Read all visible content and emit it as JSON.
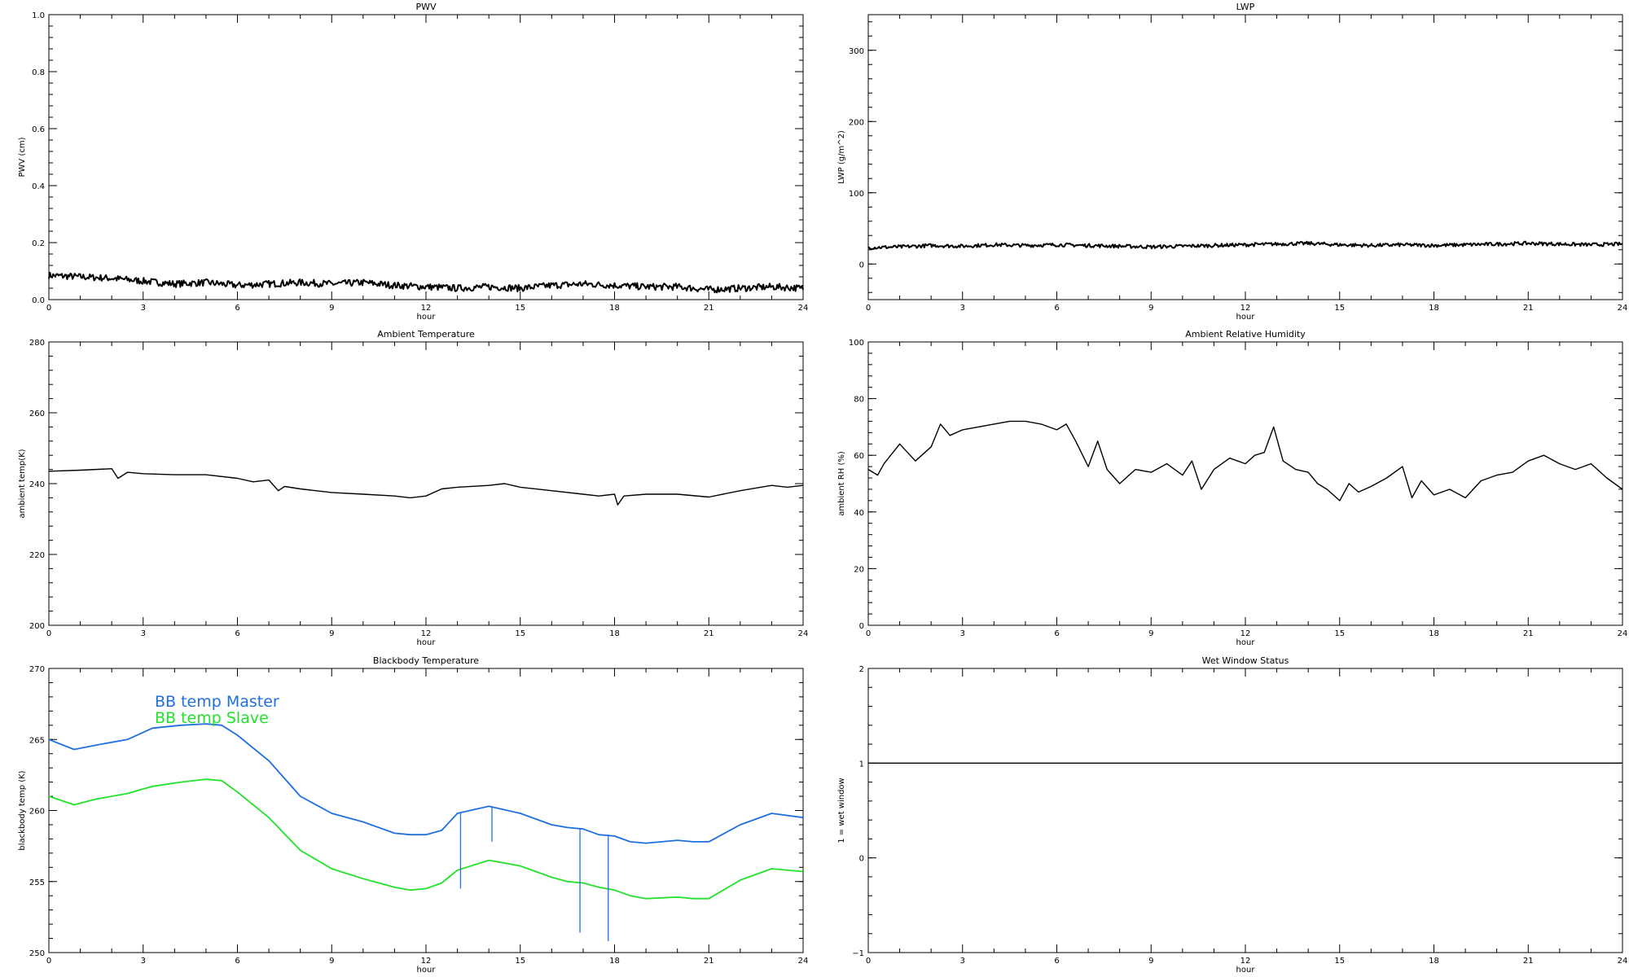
{
  "chart_data": [
    {
      "type": "line",
      "title": "PWV",
      "xlabel": "hour",
      "ylabel": "PWV (cm)",
      "xlim": [
        0,
        24
      ],
      "ylim": [
        0,
        1.0
      ],
      "xticks": [
        "0",
        "3",
        "6",
        "9",
        "12",
        "15",
        "18",
        "21",
        "24"
      ],
      "yticks": [
        "0.0",
        "0.2",
        "0.4",
        "0.6",
        "0.8",
        "1.0"
      ],
      "series": [
        {
          "color": "#000000",
          "noise": 0.012,
          "x": [
            0,
            1,
            2,
            3,
            4,
            5,
            6,
            7,
            8,
            9,
            10,
            11,
            12,
            13,
            14,
            15,
            16,
            17,
            18,
            19,
            20,
            21,
            22,
            23,
            24
          ],
          "y": [
            0.085,
            0.08,
            0.075,
            0.065,
            0.055,
            0.06,
            0.05,
            0.055,
            0.06,
            0.055,
            0.06,
            0.05,
            0.045,
            0.04,
            0.045,
            0.04,
            0.05,
            0.055,
            0.05,
            0.045,
            0.045,
            0.035,
            0.04,
            0.045,
            0.04
          ]
        }
      ]
    },
    {
      "type": "line",
      "title": "LWP",
      "xlabel": "hour",
      "ylabel": "LWP (g/m^2)",
      "xlim": [
        0,
        24
      ],
      "ylim": [
        -50,
        350
      ],
      "xticks": [
        "0",
        "3",
        "6",
        "9",
        "12",
        "15",
        "18",
        "21",
        "24"
      ],
      "yticks": [
        "0",
        "100",
        "200",
        "300"
      ],
      "series": [
        {
          "color": "#000000",
          "noise": 2.5,
          "x": [
            0,
            1,
            2,
            3,
            4,
            5,
            6,
            7,
            8,
            9,
            10,
            11,
            12,
            13,
            14,
            15,
            16,
            17,
            18,
            19,
            20,
            21,
            22,
            23,
            24
          ],
          "y": [
            23,
            24,
            26,
            25,
            27,
            26,
            27,
            26,
            25,
            24,
            25,
            26,
            27,
            28,
            29,
            27,
            26,
            27,
            26,
            27,
            28,
            29,
            28,
            27,
            28
          ]
        }
      ]
    },
    {
      "type": "line",
      "title": "Ambient Temperature",
      "xlabel": "hour",
      "ylabel": "ambient temp(K)",
      "xlim": [
        0,
        24
      ],
      "ylim": [
        200,
        280
      ],
      "xticks": [
        "0",
        "3",
        "6",
        "9",
        "12",
        "15",
        "18",
        "21",
        "24"
      ],
      "yticks": [
        "200",
        "220",
        "240",
        "260",
        "280"
      ],
      "series": [
        {
          "color": "#000000",
          "noise": 0,
          "x": [
            0,
            1,
            2,
            2.2,
            2.5,
            3,
            4,
            5,
            6,
            6.5,
            7,
            7.3,
            7.5,
            8,
            9,
            10,
            11,
            11.5,
            12,
            12.5,
            13,
            14,
            14.5,
            15,
            16,
            17,
            17.5,
            18,
            18.1,
            18.3,
            19,
            20,
            21,
            22,
            23,
            23.5,
            24
          ],
          "y": [
            243.5,
            243.8,
            244.2,
            241.5,
            243.2,
            242.8,
            242.5,
            242.5,
            241.5,
            240.5,
            241,
            238,
            239.2,
            238.5,
            237.5,
            237,
            236.5,
            236,
            236.5,
            238.5,
            239,
            239.5,
            240,
            239,
            238,
            237,
            236.5,
            237,
            234,
            236.5,
            237,
            237,
            236.2,
            238,
            239.5,
            239,
            239.5
          ]
        }
      ]
    },
    {
      "type": "line",
      "title": "Ambient Relative Humidity",
      "xlabel": "hour",
      "ylabel": "ambient RH (%)",
      "xlim": [
        0,
        24
      ],
      "ylim": [
        0,
        100
      ],
      "xticks": [
        "0",
        "3",
        "6",
        "9",
        "12",
        "15",
        "18",
        "21",
        "24"
      ],
      "yticks": [
        "0",
        "20",
        "40",
        "60",
        "80",
        "100"
      ],
      "series": [
        {
          "color": "#000000",
          "noise": 0,
          "x": [
            0,
            0.3,
            0.5,
            1,
            1.5,
            2,
            2.3,
            2.6,
            3,
            3.5,
            4,
            4.5,
            5,
            5.5,
            6,
            6.3,
            6.6,
            7,
            7.3,
            7.6,
            8,
            8.5,
            9,
            9.5,
            10,
            10.3,
            10.6,
            11,
            11.5,
            12,
            12.3,
            12.6,
            12.9,
            13.2,
            13.6,
            14,
            14.3,
            14.6,
            15,
            15.3,
            15.6,
            16,
            16.5,
            17,
            17.3,
            17.6,
            18,
            18.5,
            19,
            19.5,
            20,
            20.5,
            21,
            21.5,
            22,
            22.5,
            23,
            23.5,
            24
          ],
          "y": [
            55,
            53,
            57,
            64,
            58,
            63,
            71,
            67,
            69,
            70,
            71,
            72,
            72,
            71,
            69,
            71,
            65,
            56,
            65,
            55,
            50,
            55,
            54,
            57,
            53,
            58,
            48,
            55,
            59,
            57,
            60,
            61,
            70,
            58,
            55,
            54,
            50,
            48,
            44,
            50,
            47,
            49,
            52,
            56,
            45,
            51,
            46,
            48,
            45,
            51,
            53,
            54,
            58,
            60,
            57,
            55,
            57,
            52,
            48
          ]
        }
      ]
    },
    {
      "type": "line",
      "title": "Blackbody Temperature",
      "xlabel": "hour",
      "ylabel": "blackbody temp (K)",
      "xlim": [
        0,
        24
      ],
      "ylim": [
        250,
        270
      ],
      "xticks": [
        "0",
        "3",
        "6",
        "9",
        "12",
        "15",
        "18",
        "21",
        "24"
      ],
      "yticks": [
        "250",
        "255",
        "260",
        "265",
        "270"
      ],
      "legend_position": "top-left",
      "series": [
        {
          "name": "BB temp Master",
          "color": "#1f6fe0",
          "noise": 0,
          "x": [
            0,
            0.8,
            1.5,
            2.5,
            3.3,
            4.2,
            5,
            5.5,
            6,
            7,
            8,
            9,
            10,
            11,
            11.5,
            12,
            12.5,
            13,
            14,
            15,
            16,
            16.5,
            17,
            17.5,
            18,
            18.5,
            19,
            20,
            20.5,
            21,
            22,
            23,
            24
          ],
          "y": [
            265,
            264.3,
            264.6,
            265,
            265.8,
            266,
            266.1,
            266,
            265.3,
            263.5,
            261,
            259.8,
            259.2,
            258.4,
            258.3,
            258.3,
            258.6,
            259.8,
            260.3,
            259.8,
            259,
            258.8,
            258.7,
            258.3,
            258.2,
            257.8,
            257.7,
            257.9,
            257.8,
            257.8,
            259,
            259.8,
            259.5
          ]
        },
        {
          "name": "BB temp Slave",
          "color": "#22e22a",
          "noise": 0,
          "x": [
            0,
            0.8,
            1.5,
            2.5,
            3.3,
            4.2,
            5,
            5.5,
            6,
            7,
            8,
            9,
            10,
            11,
            11.5,
            12,
            12.5,
            13,
            14,
            15,
            16,
            16.5,
            17,
            17.5,
            18,
            18.5,
            19,
            20,
            20.5,
            21,
            22,
            23,
            24
          ],
          "y": [
            261,
            260.4,
            260.8,
            261.2,
            261.7,
            262,
            262.2,
            262.1,
            261.3,
            259.5,
            257.2,
            255.9,
            255.2,
            254.6,
            254.4,
            254.5,
            254.9,
            255.8,
            256.5,
            256.1,
            255.3,
            255,
            254.9,
            254.6,
            254.4,
            254,
            253.8,
            253.9,
            253.8,
            253.8,
            255.1,
            255.9,
            255.7
          ]
        }
      ],
      "spikes": [
        {
          "x": 13.1,
          "y_from": 259.8,
          "y_to": 254.5
        },
        {
          "x": 14.1,
          "y_from": 260.3,
          "y_to": 257.8
        },
        {
          "x": 16.9,
          "y_from": 258.7,
          "y_to": 251.4
        },
        {
          "x": 17.8,
          "y_from": 258.3,
          "y_to": 250.8
        }
      ]
    },
    {
      "type": "line",
      "title": "Wet Window Status",
      "xlabel": "hour",
      "ylabel": "1 = wet window",
      "xlim": [
        0,
        24
      ],
      "ylim": [
        -1,
        2
      ],
      "xticks": [
        "0",
        "3",
        "6",
        "9",
        "12",
        "15",
        "18",
        "21",
        "24"
      ],
      "yticks": [
        "−1",
        "0",
        "1",
        "2"
      ],
      "series": [
        {
          "color": "#000000",
          "noise": 0,
          "x": [
            0,
            24
          ],
          "y": [
            1,
            1
          ]
        }
      ]
    }
  ]
}
